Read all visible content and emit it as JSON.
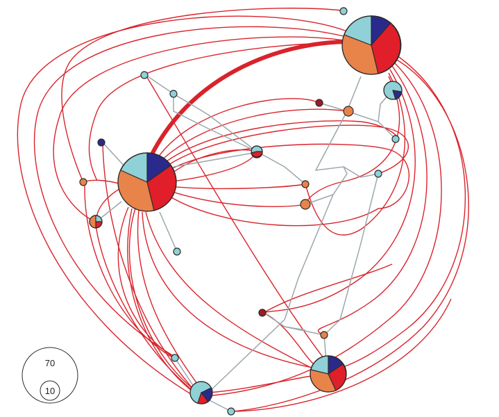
{
  "colors": {
    "red_link": "#d9232b",
    "grey_link": "#9aa7ad",
    "node_outline": "#2b2b2b",
    "light_blue": "#8fd1d6",
    "navy": "#2a2a8c",
    "red": "#e01f2a",
    "orange": "#e8834a",
    "dark_red": "#9c1b24"
  },
  "legend": {
    "large_label": "70",
    "small_label": "10"
  }
}
